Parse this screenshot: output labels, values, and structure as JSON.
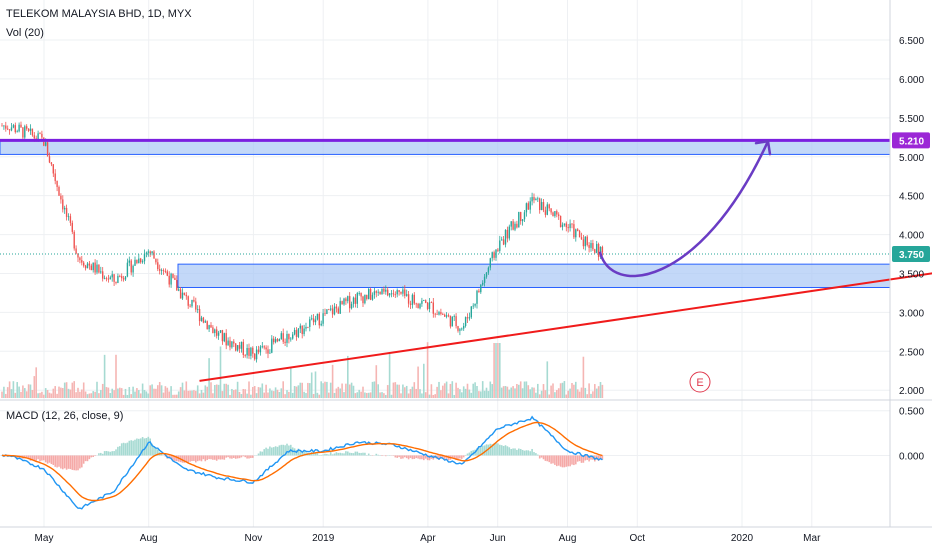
{
  "header": {
    "symbol_line": "TELEKOM MALAYSIA BHD, 1D, MYX",
    "volume_label": "Vol (20)",
    "macd_label": "MACD (12, 26, close, 9)"
  },
  "colors": {
    "up": "#26a69a",
    "down": "#ef5350",
    "zone_fill": "#a9c8f5",
    "zone_stroke": "#2962ff",
    "resistance_line": "#7b1fe0",
    "trend_line": "#f01b1b",
    "arc": "#6a3cc4",
    "macd_line": "#2196f3",
    "signal_line": "#ff6d00",
    "price_tag_current": "#26a69a",
    "price_tag_level": "#9b27d6"
  },
  "annotations": {
    "current_price_tag": "3.750",
    "resistance_tag": "5.210",
    "earnings_marker": "E"
  },
  "chart_data": [
    {
      "type": "line",
      "pane": "price",
      "title": "TELEKOM MALAYSIA BHD, 1D, MYX",
      "ylim": [
        1.9,
        6.95
      ],
      "y_ticks": [
        "6.500",
        "6.000",
        "5.500",
        "5.000",
        "4.500",
        "4.000",
        "3.500",
        "3.000",
        "2.500",
        "2.000"
      ],
      "x_ticks": [
        "May",
        "Aug",
        "Nov",
        "2019",
        "Apr",
        "Jun",
        "Aug",
        "Oct",
        "2020",
        "Mar"
      ],
      "series": [
        {
          "values_by_month": [
            [
              "Apr 2018",
              5.4
            ],
            [
              "May 2018",
              5.2
            ],
            [
              "Jun 2018",
              3.7
            ],
            [
              "Jul 2018",
              3.4
            ],
            [
              "Aug 2018",
              3.8
            ],
            [
              "Sep 2018",
              3.2
            ],
            [
              "Oct 2018",
              2.7
            ],
            [
              "Nov 2018",
              2.45
            ],
            [
              "Dec 2018",
              2.7
            ],
            [
              "Jan 2019",
              2.95
            ],
            [
              "Feb 2019",
              3.2
            ],
            [
              "Mar 2019",
              3.25
            ],
            [
              "Apr 2019",
              3.1
            ],
            [
              "May 2019",
              2.8
            ],
            [
              "Jun 2019",
              3.85
            ],
            [
              "Jul 2019",
              4.45
            ],
            [
              "Aug 2019",
              4.1
            ],
            [
              "Sep 2019",
              3.75
            ]
          ]
        }
      ],
      "levels": {
        "current": 3.75,
        "resistance": 5.21,
        "resistance_zone": [
          5.03,
          5.21
        ],
        "support_zone": [
          3.32,
          3.62
        ]
      },
      "trend_line": {
        "from": [
          "Oct 2018",
          2.12
        ],
        "to": [
          "Apr 2020",
          3.52
        ]
      },
      "projection": "curved arrow from 3.75 dipping to about 3.4 (Oct 2019) then rising to 5.2 (Feb 2020)",
      "legend": "none",
      "grid": true
    },
    {
      "type": "bar",
      "pane": "volume",
      "title": "Vol (20)",
      "note": "relative volume bars beneath price, spikes in Jun 2019"
    },
    {
      "type": "line",
      "pane": "macd",
      "title": "MACD (12, 26, close, 9)",
      "ylim": [
        -0.8,
        0.62
      ],
      "y_ticks": [
        "0.500",
        "0.000"
      ],
      "macd_by_month": [
        [
          "Apr 2018",
          0.0
        ],
        [
          "May 2018",
          -0.15
        ],
        [
          "Jun 2018",
          -0.6
        ],
        [
          "Jul 2018",
          -0.4
        ],
        [
          "Aug 2018",
          0.15
        ],
        [
          "Sep 2018",
          -0.15
        ],
        [
          "Oct 2018",
          -0.25
        ],
        [
          "Nov 2018",
          -0.3
        ],
        [
          "Dec 2018",
          0.05
        ],
        [
          "Jan 2019",
          0.05
        ],
        [
          "Feb 2019",
          0.15
        ],
        [
          "Mar 2019",
          0.12
        ],
        [
          "Apr 2019",
          0.0
        ],
        [
          "May 2019",
          -0.1
        ],
        [
          "Jun 2019",
          0.3
        ],
        [
          "Jul 2019",
          0.42
        ],
        [
          "Aug 2019",
          0.05
        ],
        [
          "Sep 2019",
          -0.05
        ]
      ]
    }
  ]
}
